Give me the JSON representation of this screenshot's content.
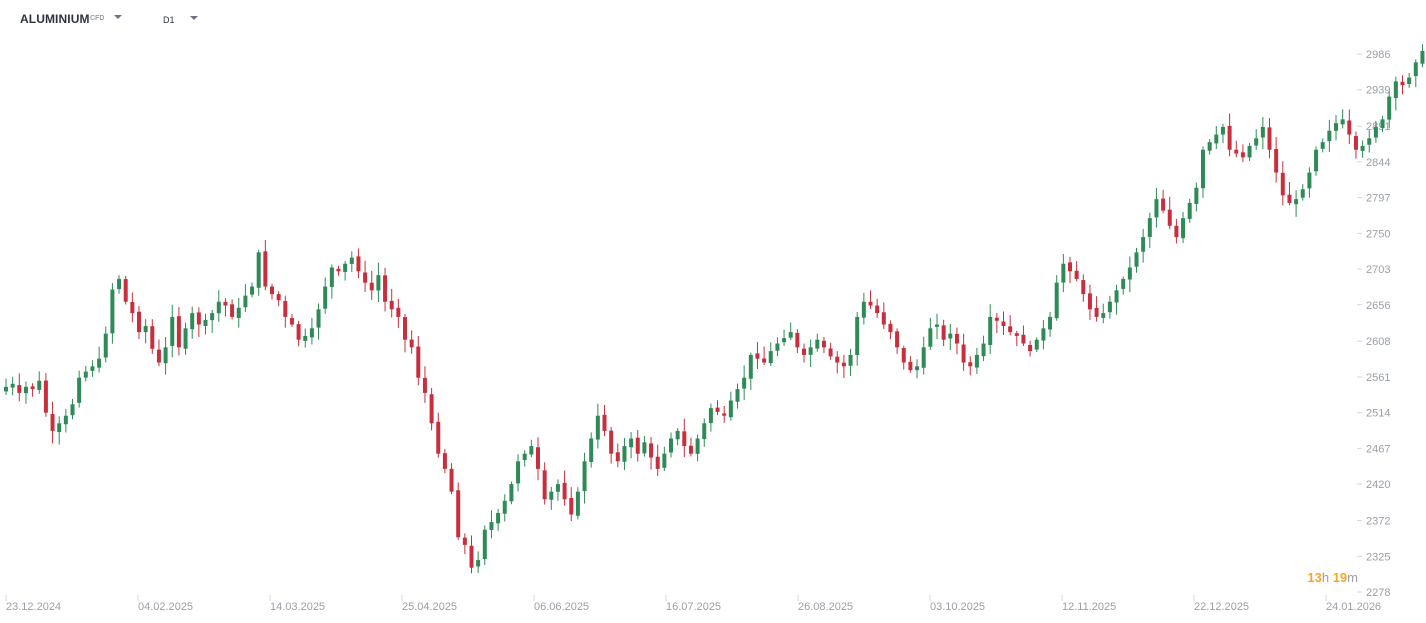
{
  "instrument": {
    "symbol": "ALUMINIUM",
    "type": "CFD"
  },
  "timeframe": "D1",
  "countdown": {
    "hours": "13",
    "hours_unit": "h",
    "minutes": "19",
    "minutes_unit": "m"
  },
  "colors": {
    "up": "#2e8b57",
    "down": "#c72f3e",
    "axis_text": "#9aa0a8",
    "tick": "#d5d8dc",
    "countdown": "#f5a623"
  },
  "chart_data": {
    "type": "candlestick",
    "title": "ALUMINIUM",
    "y_ticks": [
      2986,
      2939,
      2891,
      2844,
      2797,
      2750,
      2703,
      2656,
      2608,
      2561,
      2514,
      2467,
      2420,
      2372,
      2325,
      2278
    ],
    "x_ticks": [
      "23.12.2024",
      "04.02.2025",
      "14.03.2025",
      "25.04.2025",
      "06.06.2025",
      "16.07.2025",
      "26.08.2025",
      "03.10.2025",
      "12.11.2025",
      "22.12.2025",
      "24.01.2026"
    ],
    "ylim": [
      2278,
      3000
    ],
    "grid": false,
    "close_series_approx": [
      2548,
      2552,
      2540,
      2548,
      2545,
      2556,
      2514,
      2490,
      2500,
      2510,
      2525,
      2560,
      2568,
      2575,
      2585,
      2618,
      2676,
      2690,
      2660,
      2645,
      2620,
      2628,
      2598,
      2580,
      2600,
      2640,
      2600,
      2625,
      2645,
      2630,
      2636,
      2645,
      2660,
      2655,
      2640,
      2652,
      2668,
      2680,
      2725,
      2680,
      2670,
      2662,
      2640,
      2630,
      2610,
      2615,
      2625,
      2650,
      2680,
      2705,
      2700,
      2710,
      2718,
      2700,
      2685,
      2675,
      2695,
      2660,
      2650,
      2640,
      2610,
      2600,
      2560,
      2540,
      2500,
      2460,
      2440,
      2410,
      2350,
      2340,
      2310,
      2320,
      2360,
      2370,
      2382,
      2398,
      2420,
      2450,
      2460,
      2470,
      2440,
      2400,
      2410,
      2420,
      2400,
      2380,
      2410,
      2450,
      2480,
      2510,
      2490,
      2460,
      2450,
      2470,
      2480,
      2460,
      2475,
      2455,
      2440,
      2460,
      2480,
      2490,
      2470,
      2460,
      2480,
      2500,
      2520,
      2515,
      2510,
      2530,
      2545,
      2560,
      2590,
      2585,
      2580,
      2595,
      2605,
      2612,
      2620,
      2600,
      2590,
      2600,
      2610,
      2600,
      2588,
      2580,
      2575,
      2590,
      2640,
      2660,
      2655,
      2645,
      2630,
      2620,
      2600,
      2580,
      2570,
      2575,
      2600,
      2625,
      2630,
      2610,
      2618,
      2605,
      2580,
      2575,
      2590,
      2605,
      2640,
      2635,
      2628,
      2620,
      2615,
      2605,
      2595,
      2610,
      2625,
      2640,
      2685,
      2710,
      2700,
      2690,
      2670,
      2650,
      2640,
      2645,
      2660,
      2675,
      2690,
      2705,
      2725,
      2745,
      2770,
      2795,
      2780,
      2760,
      2745,
      2770,
      2790,
      2810,
      2860,
      2870,
      2880,
      2890,
      2860,
      2855,
      2850,
      2865,
      2875,
      2890,
      2860,
      2830,
      2800,
      2790,
      2795,
      2808,
      2830,
      2860,
      2870,
      2885,
      2895,
      2900,
      2880,
      2860,
      2865,
      2875,
      2890,
      2900,
      2930,
      2950,
      2945,
      2955,
      2975,
      2990,
      3010
    ]
  }
}
